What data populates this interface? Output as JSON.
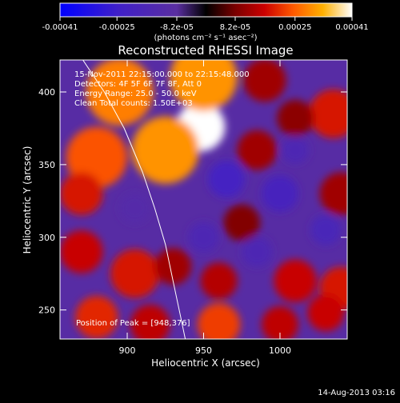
{
  "chart_data": {
    "type": "heatmap",
    "title": "Reconstructed RHESSI Image",
    "xlabel": "Heliocentric X (arcsec)",
    "ylabel": "Heliocentric Y (arcsec)",
    "x_ticks": [
      900,
      950,
      1000
    ],
    "y_ticks": [
      250,
      300,
      350,
      400
    ],
    "xlim": [
      856,
      1044
    ],
    "ylim": [
      230,
      422
    ],
    "colorbar": {
      "ticks": [
        "-0.00041",
        "-0.00025",
        "-8.2e-05",
        "8.2e-05",
        "0.00025",
        "0.00041"
      ],
      "label": "(photons cm⁻² s⁻¹ asec⁻²)",
      "range": [
        -0.00041,
        0.00041
      ]
    },
    "annotations": {
      "time": "15-Nov-2011 22:15:00.000 to 22:15:48.000",
      "detectors": "Detectors: 4F 5F 6F 7F 8F, Att 0",
      "energy": "Energy Range: 25.0 - 50.0 keV",
      "clean": "Clean    Total counts: 1.50E+03",
      "peak": "Position of Peak = [948,376]"
    },
    "peak": [
      948,
      376
    ],
    "limb_curve": [
      [
        871,
        422
      ],
      [
        885,
        400
      ],
      [
        898,
        375
      ],
      [
        910,
        345
      ],
      [
        918,
        320
      ],
      [
        925,
        295
      ],
      [
        930,
        270
      ],
      [
        935,
        245
      ],
      [
        938,
        230
      ]
    ],
    "blobs": [
      {
        "x": 948,
        "y": 376,
        "r": 16,
        "v": 0.00041
      },
      {
        "x": 925,
        "y": 360,
        "r": 22,
        "v": 0.0003
      },
      {
        "x": 880,
        "y": 355,
        "r": 20,
        "v": 0.00024
      },
      {
        "x": 870,
        "y": 330,
        "r": 14,
        "v": 0.00018
      },
      {
        "x": 895,
        "y": 400,
        "r": 22,
        "v": 0.00028
      },
      {
        "x": 950,
        "y": 410,
        "r": 22,
        "v": 0.0003
      },
      {
        "x": 990,
        "y": 408,
        "r": 14,
        "v": 0.00012
      },
      {
        "x": 1035,
        "y": 385,
        "r": 16,
        "v": 0.00018
      },
      {
        "x": 1010,
        "y": 382,
        "r": 12,
        "v": 0.0001
      },
      {
        "x": 985,
        "y": 360,
        "r": 13,
        "v": 0.00012
      },
      {
        "x": 975,
        "y": 310,
        "r": 12,
        "v": 9e-05
      },
      {
        "x": 1040,
        "y": 330,
        "r": 14,
        "v": 0.00012
      },
      {
        "x": 870,
        "y": 290,
        "r": 14,
        "v": 0.00016
      },
      {
        "x": 905,
        "y": 275,
        "r": 16,
        "v": 0.00018
      },
      {
        "x": 930,
        "y": 280,
        "r": 12,
        "v": 0.00012
      },
      {
        "x": 960,
        "y": 270,
        "r": 12,
        "v": 0.00014
      },
      {
        "x": 1010,
        "y": 270,
        "r": 14,
        "v": 0.00016
      },
      {
        "x": 1040,
        "y": 265,
        "r": 14,
        "v": 0.00018
      },
      {
        "x": 880,
        "y": 245,
        "r": 14,
        "v": 0.0002
      },
      {
        "x": 915,
        "y": 240,
        "r": 13,
        "v": 0.00015
      },
      {
        "x": 960,
        "y": 240,
        "r": 14,
        "v": 0.00022
      },
      {
        "x": 1000,
        "y": 240,
        "r": 12,
        "v": 0.00015
      },
      {
        "x": 1030,
        "y": 248,
        "r": 12,
        "v": 0.00016
      },
      {
        "x": 965,
        "y": 340,
        "r": 12,
        "v": -0.00022
      },
      {
        "x": 1000,
        "y": 330,
        "r": 12,
        "v": -0.0002
      },
      {
        "x": 1030,
        "y": 305,
        "r": 10,
        "v": -0.00018
      },
      {
        "x": 950,
        "y": 300,
        "r": 10,
        "v": -0.00016
      },
      {
        "x": 905,
        "y": 320,
        "r": 10,
        "v": -0.00012
      },
      {
        "x": 985,
        "y": 290,
        "r": 10,
        "v": -0.00016
      },
      {
        "x": 1010,
        "y": 360,
        "r": 9,
        "v": -0.00016
      }
    ],
    "baseline_value": -0.0001
  },
  "footer": {
    "timestamp": "14-Aug-2013 03:16"
  }
}
